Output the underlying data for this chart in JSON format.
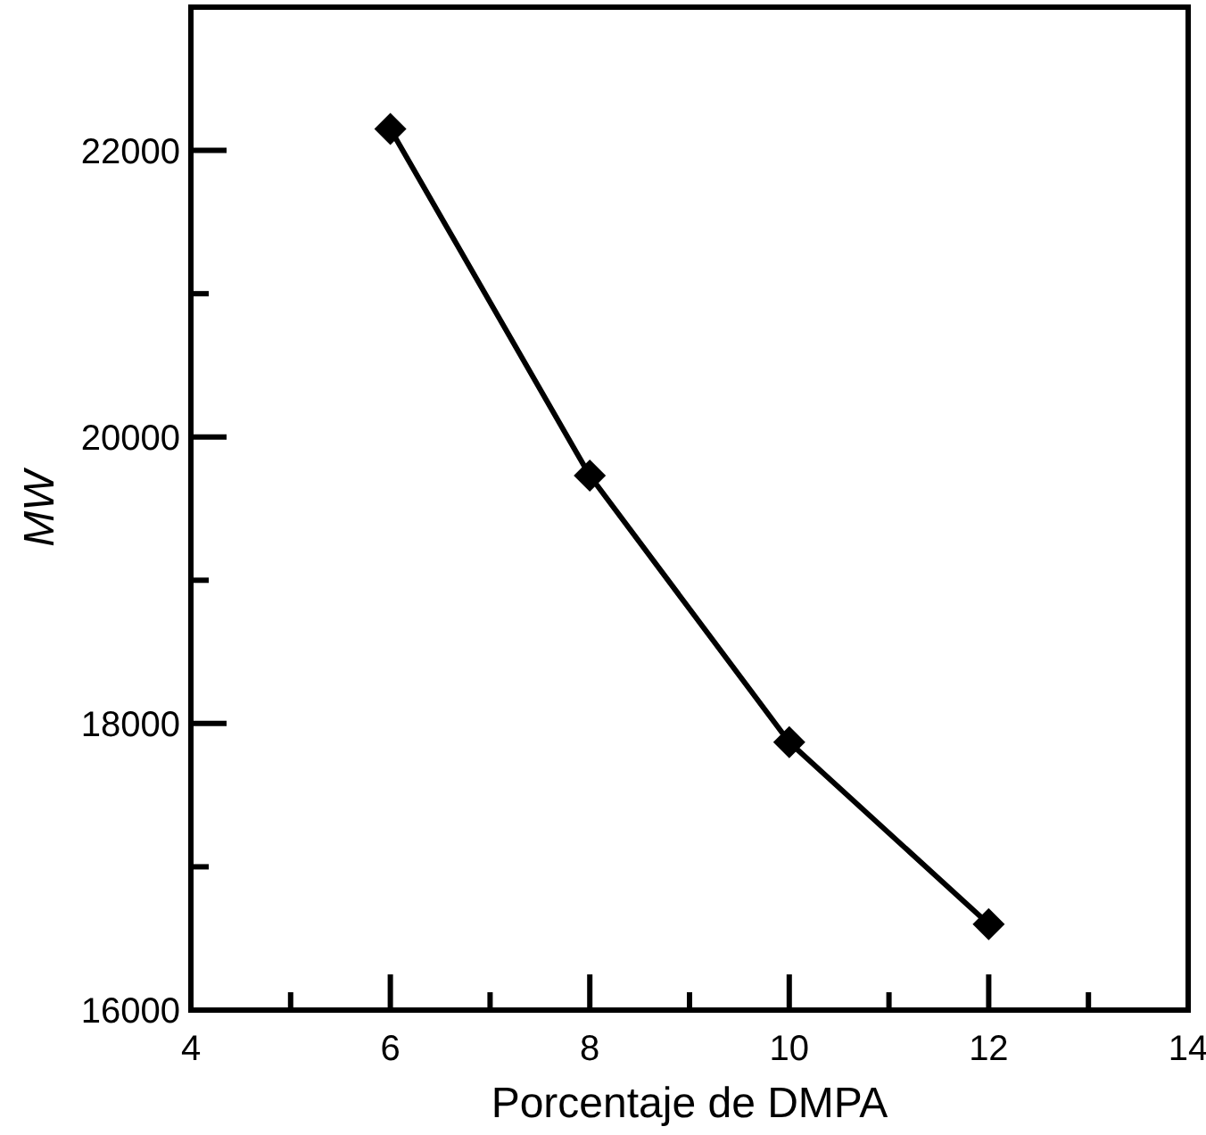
{
  "chart_data": {
    "type": "line",
    "xlabel": "Porcentaje de DMPA",
    "ylabel": "MW",
    "series": [
      {
        "color": "#000000",
        "x": [
          6,
          8,
          10,
          12
        ],
        "values": [
          22150,
          19730,
          17870,
          16600
        ]
      }
    ],
    "xlim": [
      4,
      14
    ],
    "ylim": [
      16000,
      23000
    ],
    "xticks": [
      4,
      {
        "value": 5,
        "label": null
      },
      6,
      {
        "value": 7,
        "label": null
      },
      8,
      {
        "value": 9,
        "label": null
      },
      10,
      {
        "value": 11,
        "label": null
      },
      12,
      {
        "value": 13,
        "label": null
      },
      14
    ],
    "yticks": [
      16000,
      {
        "value": 17000,
        "label": null
      },
      18000,
      {
        "value": 19000,
        "label": null
      },
      20000,
      {
        "value": 21000,
        "label": null
      },
      22000
    ],
    "marker": "diamond",
    "line_style": "solid",
    "grid": false
  }
}
